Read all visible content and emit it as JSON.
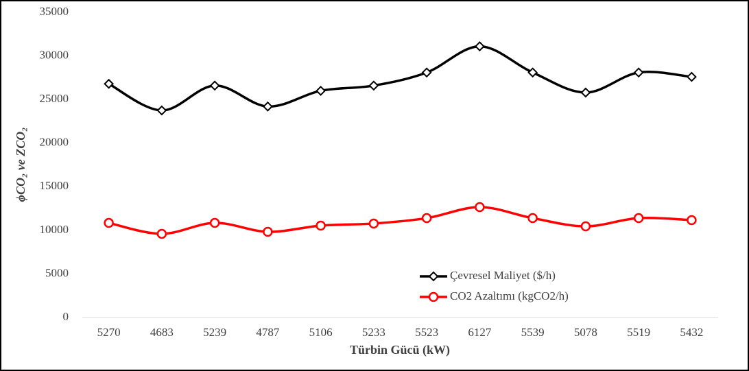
{
  "chart_data": {
    "type": "line",
    "xlabel": "Türbin Gücü (kW)",
    "ylabel": "ϕCO₂ ve ZCO₂",
    "categories": [
      "5270",
      "4683",
      "5239",
      "4787",
      "5106",
      "5233",
      "5523",
      "6127",
      "5539",
      "5078",
      "5519",
      "5432"
    ],
    "series": [
      {
        "name": "Çevresel Maliyet ($/h)",
        "color": "#000000",
        "marker": "diamond",
        "values": [
          26800,
          23750,
          26600,
          24200,
          26000,
          26600,
          28100,
          31100,
          28100,
          25800,
          28100,
          27600
        ]
      },
      {
        "name": "CO2 Azaltımı (kgCO2/h)",
        "color": "#ff0000",
        "marker": "circle",
        "values": [
          10850,
          9600,
          10850,
          9830,
          10540,
          10780,
          11400,
          12660,
          11400,
          10460,
          11400,
          11170
        ]
      }
    ],
    "ylim": [
      0,
      35000
    ],
    "yticks": [
      0,
      5000,
      10000,
      15000,
      20000,
      25000,
      30000,
      35000
    ],
    "grid": false
  }
}
